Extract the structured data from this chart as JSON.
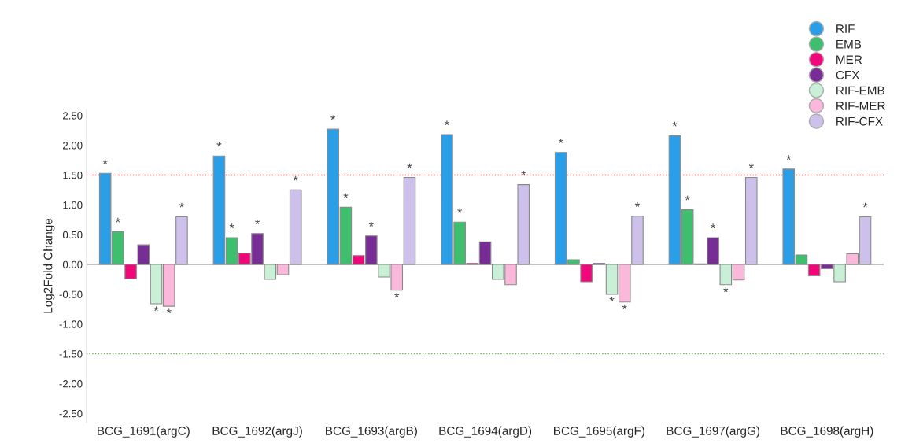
{
  "chart_data": {
    "type": "bar",
    "ylabel": "Log2Fold Change",
    "categories": [
      "BCG_1691(argC)",
      "BCG_1692(argJ)",
      "BCG_1693(argB)",
      "BCG_1694(argD)",
      "BCG_1695(argF)",
      "BCG_1697(argG)",
      "BCG_1698(argH)"
    ],
    "series": [
      {
        "name": "RIF",
        "color": "#2a9fe8",
        "values": [
          1.53,
          1.82,
          2.27,
          2.18,
          1.88,
          2.16,
          1.6
        ],
        "value_labels": [
          "*",
          "*",
          "*",
          "*",
          "*",
          "*",
          "*"
        ]
      },
      {
        "name": "EMB",
        "color": "#3dbf6e",
        "values": [
          0.55,
          0.45,
          0.96,
          0.71,
          0.08,
          0.92,
          0.16
        ],
        "value_labels": [
          "*",
          "*",
          "*",
          "*",
          null,
          "*",
          null
        ]
      },
      {
        "name": "MER",
        "color": "#f0077a",
        "values": [
          -0.24,
          0.19,
          0.15,
          0.02,
          -0.29,
          0.01,
          -0.19
        ]
      },
      {
        "name": "CFX",
        "color": "#782c96",
        "values": [
          0.33,
          0.52,
          0.48,
          0.38,
          0.02,
          0.45,
          -0.07
        ],
        "value_labels": [
          null,
          "*",
          "*",
          null,
          null,
          "*",
          null
        ]
      },
      {
        "name": "RIF-EMB",
        "color": "#c9efd6",
        "values": [
          -0.66,
          -0.25,
          -0.21,
          -0.25,
          -0.5,
          -0.34,
          -0.29
        ],
        "value_labels": [
          "*",
          null,
          null,
          null,
          "*",
          "*",
          null
        ]
      },
      {
        "name": "RIF-MER",
        "color": "#fbb8db",
        "values": [
          -0.7,
          -0.17,
          -0.43,
          -0.34,
          -0.63,
          -0.26,
          0.18
        ],
        "value_labels": [
          "*",
          null,
          "*",
          null,
          "*",
          null,
          null
        ]
      },
      {
        "name": "RIF-CFX",
        "color": "#cdc0ea",
        "values": [
          0.8,
          1.25,
          1.46,
          1.34,
          0.81,
          1.46,
          0.8
        ],
        "value_labels": [
          "*",
          "*",
          "*",
          "*",
          "*",
          "*",
          "*"
        ]
      }
    ],
    "ylim": [
      -2.65,
      2.6
    ],
    "yticks": [
      {
        "value": -2.5,
        "label": "-2.50"
      },
      {
        "value": -2.0,
        "label": "-2.00"
      },
      {
        "value": -1.5,
        "label": "-1.50"
      },
      {
        "value": -1.0,
        "label": "-1.00"
      },
      {
        "value": -0.5,
        "label": "-0.50"
      },
      {
        "value": 0.0,
        "label": "0.00"
      },
      {
        "value": 0.5,
        "label": "0.50"
      },
      {
        "value": 1.0,
        "label": "1.00"
      },
      {
        "value": 1.5,
        "label": "1.50"
      },
      {
        "value": 2.0,
        "label": "2.00"
      },
      {
        "value": 2.5,
        "label": "2.50"
      }
    ],
    "ref_lines": [
      {
        "axis": "y",
        "value": 1.5,
        "color": "#e8413c",
        "line_style": "dotted"
      },
      {
        "axis": "y",
        "value": -1.5,
        "color": "#5cbf3a",
        "line_style": "dotted"
      }
    ],
    "legend": "top right",
    "grid": false,
    "marker": "circle"
  }
}
